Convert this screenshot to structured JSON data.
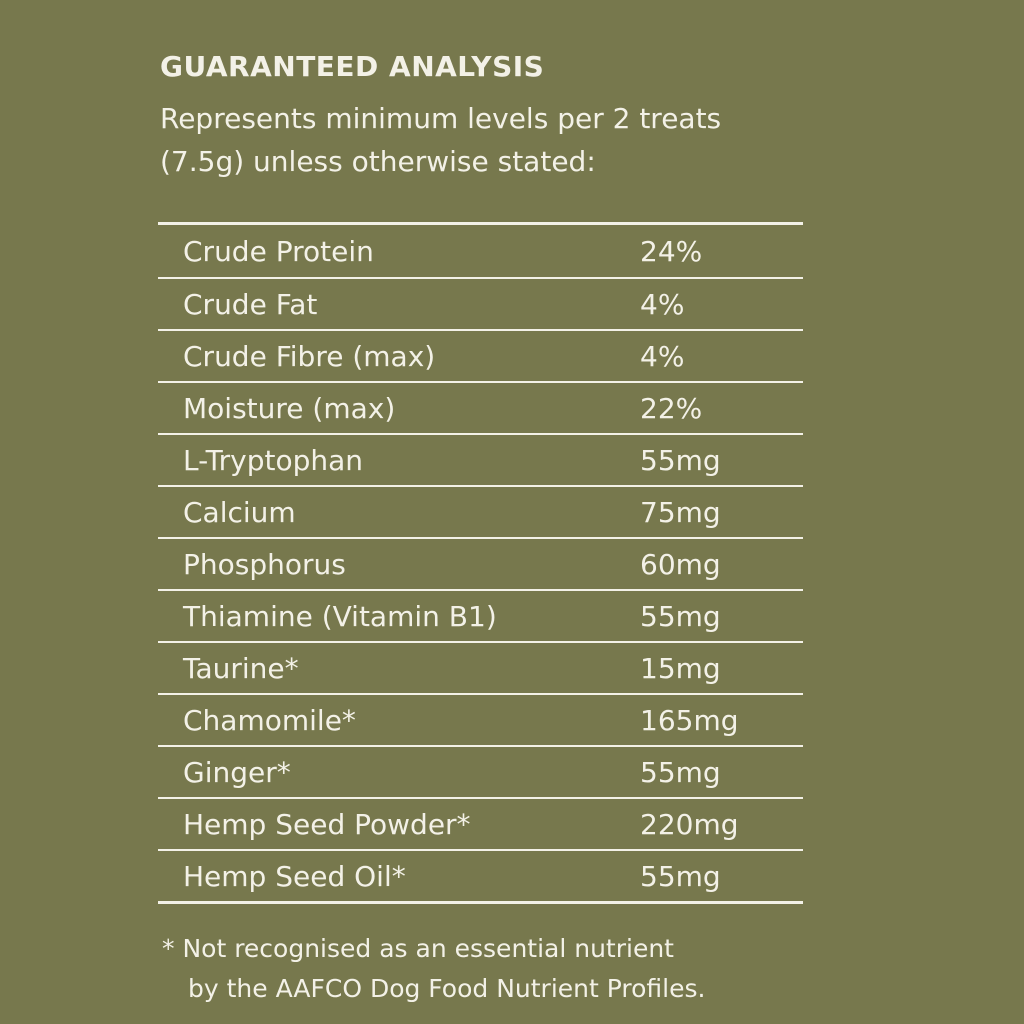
{
  "header": {
    "title": "GUARANTEED ANALYSIS",
    "subtitle_lines": [
      "Represents minimum levels per 2 treats",
      "(7.5g) unless otherwise stated:"
    ]
  },
  "table": {
    "rows": [
      [
        "Crude Protein",
        "24%"
      ],
      [
        "Crude Fat",
        "4%"
      ],
      [
        "Crude Fibre (max)",
        "4%"
      ],
      [
        "Moisture (max)",
        "22%"
      ],
      [
        "L-Tryptophan",
        "55mg"
      ],
      [
        "Calcium",
        "75mg"
      ],
      [
        "Phosphorus",
        "60mg"
      ],
      [
        "Thiamine (Vitamin B1)",
        "55mg"
      ],
      [
        "Taurine*",
        "15mg"
      ],
      [
        "Chamomile*",
        "165mg"
      ],
      [
        "Ginger*",
        "55mg"
      ],
      [
        "Hemp Seed Powder*",
        "220mg"
      ],
      [
        "Hemp Seed Oil*",
        "55mg"
      ]
    ]
  },
  "footnote": {
    "lines": [
      "* Not recognised as an essential nutrient",
      "by the AAFCO Dog Food Nutrient Profiles."
    ]
  }
}
